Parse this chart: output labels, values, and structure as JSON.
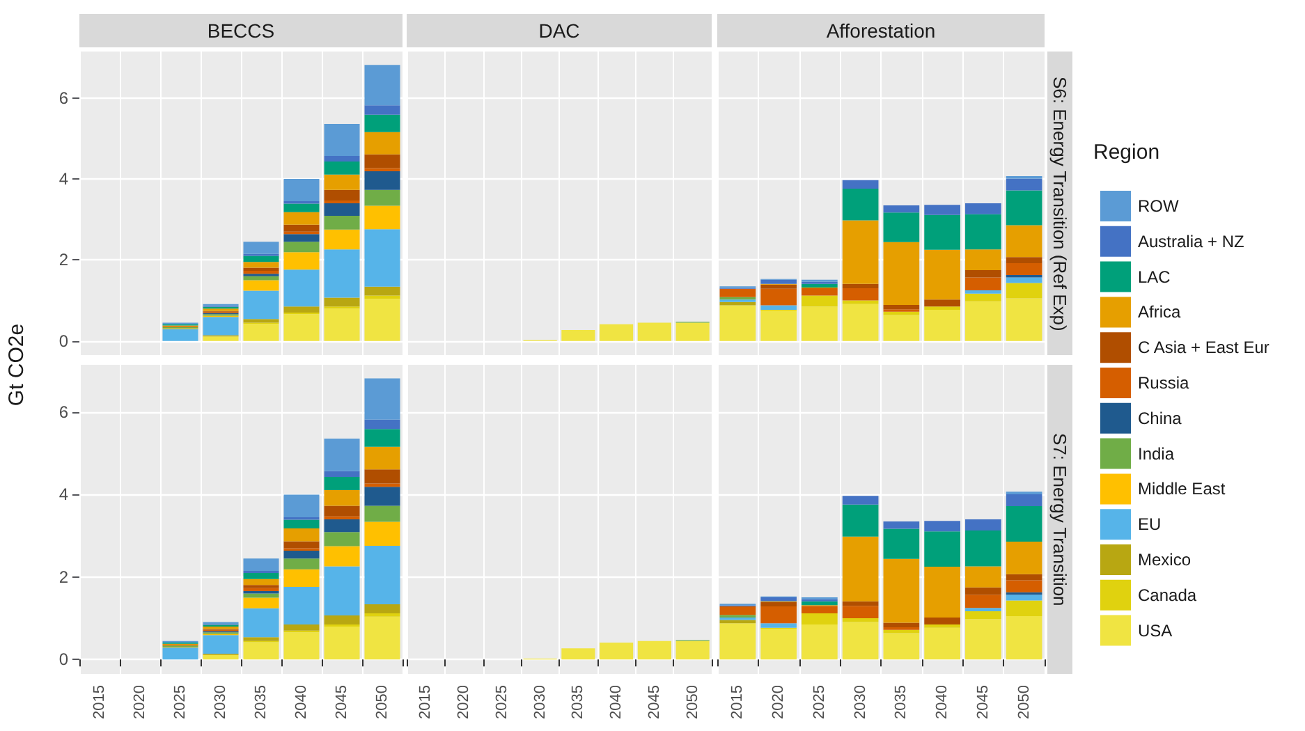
{
  "chart_data": [
    {
      "type": "bar",
      "title": "BECCS",
      "ylabel": "Gt CO2e",
      "categories": [
        "2015",
        "2020",
        "2025",
        "2030",
        "2035",
        "2040",
        "2045",
        "2050"
      ],
      "stacked": true,
      "ylim": [
        -0.35,
        7.15
      ],
      "yticks": [
        0,
        2,
        4,
        6
      ],
      "grid": true,
      "tick_labels": "y",
      "series": [
        {
          "color": "#f0e442",
          "values": [
            null,
            null,
            null,
            0.11,
            0.42,
            0.66,
            0.8,
            1.04
          ]
        },
        {
          "color": "#e0d20f",
          "values": [
            null,
            null,
            null,
            null,
            0.03,
            0.04,
            0.05,
            0.08
          ]
        },
        {
          "color": "#b8a712",
          "values": [
            null,
            null,
            null,
            0.03,
            0.09,
            0.15,
            0.22,
            0.22
          ]
        },
        {
          "color": "#56b4e9",
          "values": [
            null,
            null,
            0.29,
            0.45,
            0.7,
            0.91,
            1.19,
            1.42
          ]
        },
        {
          "color": "#ffc000",
          "values": [
            null,
            null,
            0.02,
            0.03,
            0.26,
            0.43,
            0.49,
            0.58
          ]
        },
        {
          "color": "#70ad47",
          "values": [
            null,
            null,
            0.03,
            0.04,
            0.1,
            0.26,
            0.34,
            0.39
          ]
        },
        {
          "color": "#1f5a8e",
          "values": [
            null,
            null,
            null,
            0.03,
            0.06,
            0.19,
            0.31,
            0.46
          ]
        },
        {
          "color": "#d55e00",
          "values": [
            null,
            null,
            0.02,
            0.03,
            0.07,
            0.06,
            0.07,
            0.08
          ]
        },
        {
          "color": "#b04e00",
          "values": [
            null,
            null,
            null,
            0.02,
            0.08,
            0.17,
            0.26,
            0.34
          ]
        },
        {
          "color": "#e69f00",
          "values": [
            null,
            null,
            0.02,
            0.06,
            0.14,
            0.31,
            0.38,
            0.55
          ]
        },
        {
          "color": "#00a07a",
          "values": [
            null,
            null,
            0.03,
            0.04,
            0.15,
            0.21,
            0.32,
            0.43
          ]
        },
        {
          "color": "#4472c4",
          "values": [
            null,
            null,
            null,
            0.02,
            0.05,
            0.06,
            0.14,
            0.23
          ]
        },
        {
          "color": "#5b9bd5",
          "values": [
            null,
            null,
            0.04,
            0.05,
            0.3,
            0.55,
            0.79,
            1.0
          ]
        }
      ]
    },
    {
      "type": "bar",
      "title": "DAC",
      "categories": [
        "2015",
        "2020",
        "2025",
        "2030",
        "2035",
        "2040",
        "2045",
        "2050"
      ],
      "stacked": true,
      "ylim": [
        -0.35,
        7.15
      ],
      "yticks": [
        0,
        2,
        4,
        6
      ],
      "grid": true,
      "tick_labels": false,
      "series": [
        {
          "color": "#f0e442",
          "values": [
            null,
            null,
            null,
            0.02,
            0.27,
            0.41,
            0.45,
            0.45
          ]
        },
        {
          "color": "#70ad47",
          "values": [
            null,
            null,
            null,
            null,
            null,
            null,
            null,
            0.02
          ]
        }
      ]
    },
    {
      "type": "bar",
      "title": "Afforestation",
      "annotations": [
        "S6: Energy Transition (Ref Exp)"
      ],
      "legend": "right",
      "legend_title": "Region",
      "categories": [
        "2015",
        "2020",
        "2025",
        "2030",
        "2035",
        "2040",
        "2045",
        "2050"
      ],
      "stacked": true,
      "ylim": [
        -0.35,
        7.15
      ],
      "yticks": [
        0,
        2,
        4,
        6
      ],
      "grid": true,
      "tick_labels": false,
      "series": [
        {
          "name": "USA",
          "color": "#f0e442",
          "values": [
            0.88,
            0.75,
            0.85,
            0.91,
            0.64,
            0.77,
            0.98,
            1.05
          ]
        },
        {
          "name": "Canada",
          "color": "#e0d20f",
          "values": [
            null,
            0.02,
            0.27,
            0.09,
            0.08,
            0.08,
            0.19,
            0.38
          ]
        },
        {
          "name": "Mexico",
          "color": "#b8a712",
          "values": [
            0.08,
            null,
            null,
            null,
            null,
            null,
            null,
            null
          ]
        },
        {
          "name": "EU",
          "color": "#56b4e9",
          "values": [
            0.06,
            0.11,
            null,
            null,
            null,
            null,
            0.08,
            0.14
          ]
        },
        {
          "name": "Middle East",
          "color": "#ffc000",
          "values": [
            null,
            null,
            null,
            null,
            null,
            null,
            null,
            null
          ]
        },
        {
          "name": "India",
          "color": "#70ad47",
          "values": [
            0.06,
            null,
            null,
            null,
            null,
            null,
            null,
            null
          ]
        },
        {
          "name": "China",
          "color": "#1f5a8e",
          "values": [
            null,
            null,
            null,
            null,
            null,
            null,
            null,
            0.06
          ]
        },
        {
          "name": "Russia",
          "color": "#d55e00",
          "values": [
            0.21,
            0.41,
            0.18,
            0.3,
            0.06,
            null,
            0.32,
            0.29
          ]
        },
        {
          "name": "C Asia + East Eur",
          "color": "#b04e00",
          "values": [
            null,
            0.1,
            null,
            0.11,
            0.11,
            0.17,
            0.18,
            0.15
          ]
        },
        {
          "name": "Africa",
          "color": "#e69f00",
          "values": [
            null,
            0.02,
            0.02,
            1.57,
            1.55,
            1.23,
            0.51,
            0.79
          ]
        },
        {
          "name": "LAC",
          "color": "#00a07a",
          "values": [
            null,
            null,
            0.09,
            0.78,
            0.73,
            0.86,
            0.87,
            0.86
          ]
        },
        {
          "name": "Australia + NZ",
          "color": "#4472c4",
          "values": [
            0.02,
            0.1,
            0.05,
            0.21,
            0.18,
            0.25,
            0.27,
            0.29
          ]
        },
        {
          "name": "ROW",
          "color": "#5b9bd5",
          "values": [
            0.04,
            0.02,
            0.05,
            null,
            null,
            null,
            null,
            0.06
          ]
        }
      ]
    },
    {
      "type": "bar",
      "categories": [
        "2015",
        "2020",
        "2025",
        "2030",
        "2035",
        "2040",
        "2045",
        "2050"
      ],
      "stacked": true,
      "ylim": [
        -0.35,
        7.15
      ],
      "yticks": [
        0,
        2,
        4,
        6
      ],
      "grid": true,
      "series": [
        {
          "color": "#f0e442",
          "values": [
            null,
            null,
            null,
            0.11,
            0.42,
            0.66,
            0.8,
            1.04
          ]
        },
        {
          "color": "#e0d20f",
          "values": [
            null,
            null,
            null,
            null,
            0.03,
            0.04,
            0.05,
            0.08
          ]
        },
        {
          "color": "#b8a712",
          "values": [
            null,
            null,
            null,
            0.03,
            0.09,
            0.15,
            0.22,
            0.22
          ]
        },
        {
          "color": "#56b4e9",
          "values": [
            null,
            null,
            0.29,
            0.45,
            0.7,
            0.91,
            1.19,
            1.42
          ]
        },
        {
          "color": "#ffc000",
          "values": [
            null,
            null,
            0.02,
            0.03,
            0.26,
            0.43,
            0.49,
            0.58
          ]
        },
        {
          "color": "#70ad47",
          "values": [
            null,
            null,
            0.03,
            0.04,
            0.1,
            0.26,
            0.34,
            0.39
          ]
        },
        {
          "color": "#1f5a8e",
          "values": [
            null,
            null,
            null,
            0.03,
            0.06,
            0.19,
            0.31,
            0.46
          ]
        },
        {
          "color": "#d55e00",
          "values": [
            null,
            null,
            0.02,
            0.03,
            0.07,
            0.06,
            0.07,
            0.08
          ]
        },
        {
          "color": "#b04e00",
          "values": [
            null,
            null,
            null,
            0.02,
            0.08,
            0.17,
            0.26,
            0.34
          ]
        },
        {
          "color": "#e69f00",
          "values": [
            null,
            null,
            0.02,
            0.06,
            0.14,
            0.31,
            0.38,
            0.55
          ]
        },
        {
          "color": "#00a07a",
          "values": [
            null,
            null,
            0.03,
            0.04,
            0.15,
            0.21,
            0.32,
            0.43
          ]
        },
        {
          "color": "#4472c4",
          "values": [
            null,
            null,
            null,
            0.02,
            0.05,
            0.06,
            0.14,
            0.23
          ]
        },
        {
          "color": "#5b9bd5",
          "values": [
            null,
            null,
            0.04,
            0.05,
            0.3,
            0.55,
            0.79,
            1.0
          ]
        }
      ]
    },
    {
      "type": "bar",
      "categories": [
        "2015",
        "2020",
        "2025",
        "2030",
        "2035",
        "2040",
        "2045",
        "2050"
      ],
      "stacked": true,
      "ylim": [
        -0.35,
        7.15
      ],
      "yticks": [
        0,
        2,
        4,
        6
      ],
      "grid": true,
      "tick_labels": "x",
      "series": [
        {
          "color": "#f0e442",
          "values": [
            null,
            null,
            null,
            0.02,
            0.27,
            0.41,
            0.45,
            0.45
          ]
        },
        {
          "color": "#70ad47",
          "values": [
            null,
            null,
            null,
            null,
            null,
            null,
            null,
            0.02
          ]
        }
      ]
    },
    {
      "type": "bar",
      "annotations": [
        "S7: Energy Transition"
      ],
      "categories": [
        "2015",
        "2020",
        "2025",
        "2030",
        "2035",
        "2040",
        "2045",
        "2050"
      ],
      "stacked": true,
      "ylim": [
        -0.35,
        7.15
      ],
      "yticks": [
        0,
        2,
        4,
        6
      ],
      "grid": true,
      "tick_labels": "x",
      "series": [
        {
          "color": "#f0e442",
          "values": [
            0.88,
            0.75,
            0.85,
            0.91,
            0.64,
            0.77,
            0.98,
            1.05
          ]
        },
        {
          "color": "#e0d20f",
          "values": [
            null,
            0.02,
            0.27,
            0.09,
            0.08,
            0.08,
            0.19,
            0.38
          ]
        },
        {
          "color": "#b8a712",
          "values": [
            0.08,
            null,
            null,
            null,
            null,
            null,
            null,
            null
          ]
        },
        {
          "color": "#56b4e9",
          "values": [
            0.06,
            0.11,
            null,
            null,
            null,
            null,
            0.08,
            0.14
          ]
        },
        {
          "color": "#70ad47",
          "values": [
            0.06,
            null,
            null,
            null,
            null,
            null,
            null,
            null
          ]
        },
        {
          "color": "#1f5a8e",
          "values": [
            null,
            null,
            null,
            null,
            null,
            null,
            null,
            0.06
          ]
        },
        {
          "color": "#d55e00",
          "values": [
            0.21,
            0.41,
            0.18,
            0.3,
            0.06,
            null,
            0.32,
            0.29
          ]
        },
        {
          "color": "#b04e00",
          "values": [
            null,
            0.1,
            null,
            0.11,
            0.11,
            0.17,
            0.18,
            0.15
          ]
        },
        {
          "color": "#e69f00",
          "values": [
            null,
            0.02,
            0.02,
            1.57,
            1.55,
            1.23,
            0.51,
            0.79
          ]
        },
        {
          "color": "#00a07a",
          "values": [
            null,
            null,
            0.09,
            0.78,
            0.73,
            0.86,
            0.87,
            0.86
          ]
        },
        {
          "color": "#4472c4",
          "values": [
            0.02,
            0.1,
            0.05,
            0.21,
            0.18,
            0.25,
            0.27,
            0.29
          ]
        },
        {
          "color": "#5b9bd5",
          "values": [
            0.04,
            0.02,
            0.05,
            null,
            null,
            null,
            null,
            0.06
          ]
        }
      ]
    }
  ]
}
